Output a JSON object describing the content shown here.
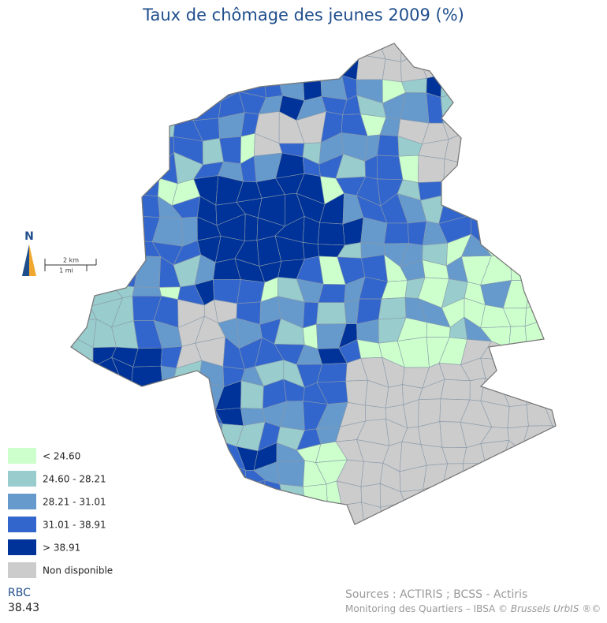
{
  "title": "Taux de chômage des jeunes 2009 (%)",
  "legend": [
    {
      "label": "< 24.60",
      "color": "#ccffcc"
    },
    {
      "label": "24.60 - 28.21",
      "color": "#99cccc"
    },
    {
      "label": "28.21 - 31.01",
      "color": "#6699cc"
    },
    {
      "label": "31.01 - 38.91",
      "color": "#3366cc"
    },
    {
      "label": "> 38.91",
      "color": "#003399"
    },
    {
      "label": "Non disponible",
      "color": "#cccccc"
    }
  ],
  "north": "N",
  "scale": {
    "km": "2 km",
    "mi": "1 mi"
  },
  "region": {
    "label": "RBC",
    "value": 38.43
  },
  "sources": {
    "line1": "Sources : ACTIRIS ; BCSS - Actiris",
    "line2": "Monitoring des Quartiers – IBSA ©",
    "line2_italic": "Brussels UrbIS ®©"
  }
}
